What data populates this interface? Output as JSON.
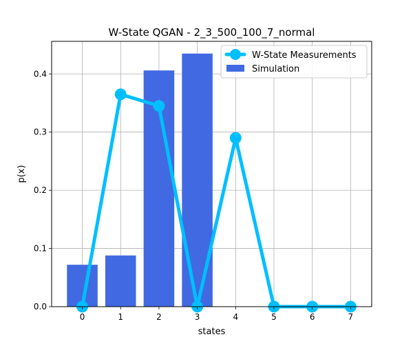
{
  "chart_data": {
    "type": "bar",
    "title": "W-State QGAN - 2_3_500_100_7_normal",
    "xlabel": "states",
    "ylabel": "p(x)",
    "categories": [
      "0",
      "1",
      "2",
      "3",
      "4",
      "5",
      "6",
      "7"
    ],
    "x": [
      0,
      1,
      2,
      3,
      4,
      5,
      6,
      7
    ],
    "xlim": [
      -0.8,
      7.55
    ],
    "ylim": [
      0,
      0.456
    ],
    "yticks": [
      0.0,
      0.1,
      0.2,
      0.3,
      0.4
    ],
    "ytick_labels": [
      "0.0",
      "0.1",
      "0.2",
      "0.3",
      "0.4"
    ],
    "grid": true,
    "legend_position": "top-right",
    "series": [
      {
        "name": "W-State Measurements",
        "kind": "line",
        "color": "#00bfff",
        "marker": "circle",
        "values": [
          0.0,
          0.365,
          0.345,
          0.0,
          0.29,
          0.0,
          0.0,
          0.0
        ]
      },
      {
        "name": "Simulation",
        "kind": "bar",
        "color": "#4169e1",
        "values": [
          0.072,
          0.088,
          0.406,
          0.435,
          0.0,
          0.0,
          0.0,
          0.0
        ]
      }
    ]
  }
}
